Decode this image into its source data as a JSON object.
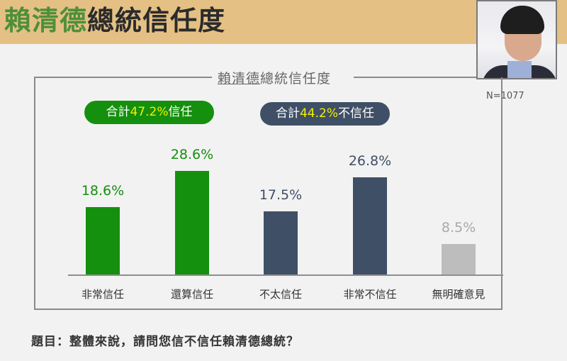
{
  "header": {
    "title_highlight": "賴清德",
    "title_rest": "總統信任度"
  },
  "chart": {
    "title_underlined": "賴清德",
    "title_rest": "總統信任度",
    "sample_size": "N=1077",
    "summary_trust": {
      "prefix": "合計",
      "value": "47.2%",
      "suffix": "信任"
    },
    "summary_distrust": {
      "prefix": "合計",
      "value": "44.2%",
      "suffix": "不信任"
    }
  },
  "question": "題目：整體來說，請問您信不信任賴清德總統？",
  "colors": {
    "trust": "#14900e",
    "distrust": "#3f4f66",
    "no_opinion": "#bdbdbd",
    "header_bg": "#e4c084",
    "highlight_yellow": "#f1f100"
  },
  "chart_data": {
    "type": "bar",
    "title": "賴清德總統信任度",
    "categories": [
      "非常信任",
      "還算信任",
      "不太信任",
      "非常不信任",
      "無明確意見"
    ],
    "values": [
      18.6,
      28.6,
      17.5,
      26.8,
      8.5
    ],
    "labels": [
      "18.6%",
      "28.6%",
      "17.5%",
      "26.8%",
      "8.5%"
    ],
    "bar_colors": [
      "#14900e",
      "#14900e",
      "#3f4f66",
      "#3f4f66",
      "#bdbdbd"
    ],
    "annotations": [
      "合計47.2%信任",
      "合計44.2%不信任",
      "N=1077"
    ],
    "xlabel": "",
    "ylabel": "",
    "unit": "%",
    "grid": false,
    "legend": null
  }
}
